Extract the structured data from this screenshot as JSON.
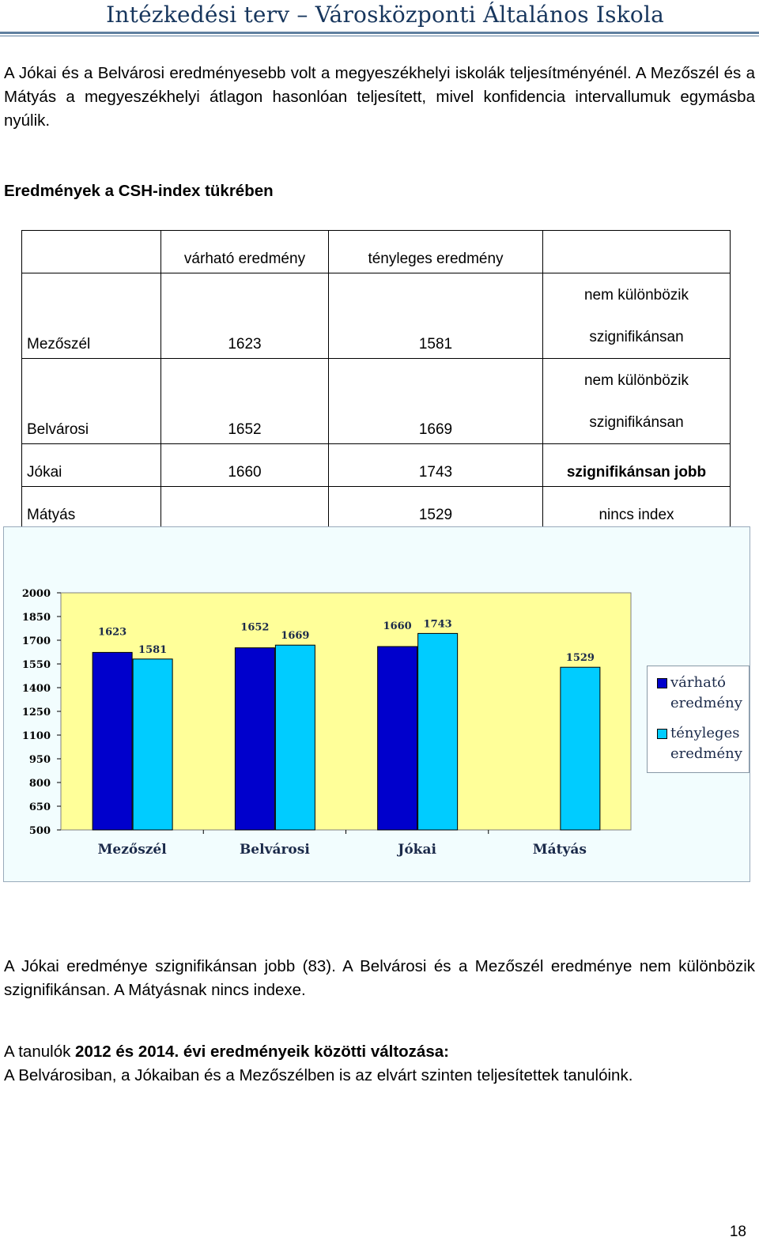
{
  "header": {
    "title": "Intézkedési terv – Városközponti Általános Iskola"
  },
  "paragraphs": {
    "intro": "A Jókai és a Belvárosi eredményesebb volt a megyeszékhelyi iskolák teljesítményénél. A Mezőszél és a Mátyás a megyeszékhelyi átlagon hasonlóan teljesített, mivel konfidencia intervallumuk egymásba nyúlik.",
    "after_chart": "A Jókai eredménye szignifikánsan jobb (83). A Belvárosi és a Mezőszél eredménye nem különbözik szignifikánsan. A Mátyásnak nincs indexe.",
    "change_prefix": "A tanulók ",
    "change_bold": "2012 és 2014. évi eredményeik közötti változása:",
    "change_text": "A Belvárosiban, a Jókaiban és a Mezőszélben is az elvárt szinten teljesítettek tanulóink."
  },
  "section_title": "Eredmények a CSH-index tükrében",
  "table": {
    "headers": [
      "",
      "várható eredmény",
      "tényleges eredmény",
      ""
    ],
    "rows": [
      {
        "name": "Mezőszél",
        "expected": "1623",
        "actual": "1581",
        "sig_line1": "nem különbözik",
        "sig_line2": "szignifikánsan"
      },
      {
        "name": "Belvárosi",
        "expected": "1652",
        "actual": "1669",
        "sig_line1": "nem különbözik",
        "sig_line2": "szignifikánsan"
      },
      {
        "name": "Jókai",
        "expected": "1660",
        "actual": "1743",
        "sig": "szignifikánsan jobb"
      },
      {
        "name": "Mátyás",
        "expected": "",
        "actual": "1529",
        "sig": "nincs index"
      }
    ]
  },
  "chart_data": {
    "type": "bar",
    "categories": [
      "Mezőszél",
      "Belvárosi",
      "Jókai",
      "Mátyás"
    ],
    "series": [
      {
        "name": "várható eredmény",
        "values": [
          1623,
          1652,
          1660,
          null
        ],
        "color": "#0000cc"
      },
      {
        "name": "tényleges eredmény",
        "values": [
          1581,
          1669,
          1743,
          1529
        ],
        "color": "#00ccff"
      }
    ],
    "ylim": [
      500,
      2000
    ],
    "yticks": [
      500,
      650,
      800,
      950,
      1100,
      1250,
      1400,
      1550,
      1700,
      1850,
      2000
    ],
    "grid": false,
    "legend": "right",
    "plot_background": "#ffff99",
    "chart_background": "#f2fdfe"
  },
  "legend": {
    "s1_line1": "várható",
    "s1_line2": "eredmény",
    "s2_line1": "tényleges",
    "s2_line2": "eredmény"
  },
  "page_number": "18"
}
